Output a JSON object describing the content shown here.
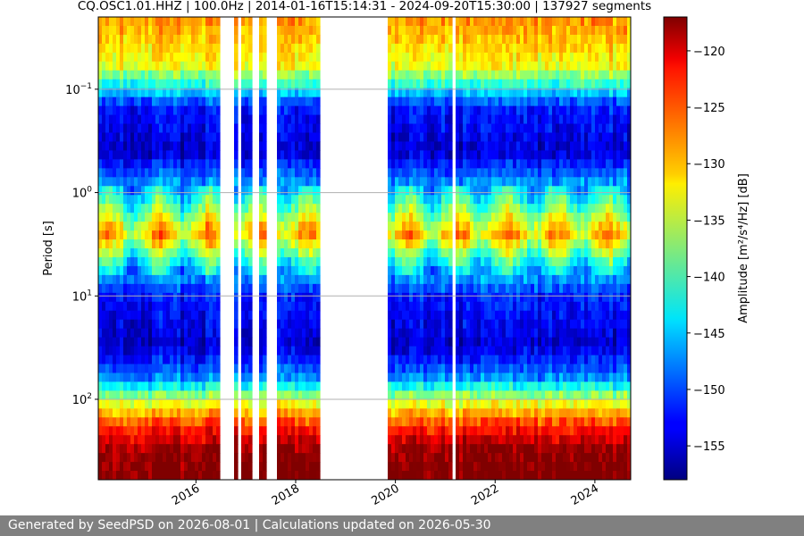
{
  "footer_text": "Generated by SeedPSD on 2026-08-01 | Calculations updated on 2026-05-30",
  "chart_data": {
    "type": "heatmap",
    "title": "CQ.OSC1.01.HHZ | 100.0Hz | 2014-01-16T15:14:31 - 2024-09-20T15:30:00 | 137927 segments",
    "xlabel": "",
    "ylabel": "Period [s]",
    "x_range": [
      "2014-01-16",
      "2024-09-20"
    ],
    "x_ticks": [
      "2016",
      "2018",
      "2020",
      "2022",
      "2024"
    ],
    "y_scale": "log",
    "y_inverted": true,
    "y_range": [
      0.02,
      600
    ],
    "y_ticks": [
      {
        "value": 0.1,
        "base": "10",
        "exp": "−1"
      },
      {
        "value": 1,
        "base": "10",
        "exp": "0"
      },
      {
        "value": 10,
        "base": "10",
        "exp": "1"
      },
      {
        "value": 100,
        "base": "10",
        "exp": "2"
      }
    ],
    "grid": "horizontal at y ticks",
    "colorbar": {
      "colormap": "jet",
      "label": "Amplitude [m²/s⁴/Hz] [dB]",
      "range": [
        -158,
        -117
      ],
      "ticks": [
        -120,
        -125,
        -130,
        -135,
        -140,
        -145,
        -150,
        -155
      ]
    },
    "data_gaps": [
      [
        "2016-07-01",
        "2016-10-01"
      ],
      [
        "2018-07-01",
        "2019-11-01"
      ],
      [
        "2021-02-15",
        "2021-03-20"
      ]
    ],
    "amplitude_profile": [
      {
        "period": 0.02,
        "db": -128
      },
      {
        "period": 0.06,
        "db": -133
      },
      {
        "period": 0.15,
        "db": -152
      },
      {
        "period": 0.4,
        "db": -155
      },
      {
        "period": 0.8,
        "db": -147
      },
      {
        "period": 2.5,
        "db": -130
      },
      {
        "period": 5,
        "db": -143
      },
      {
        "period": 10,
        "db": -152
      },
      {
        "period": 30,
        "db": -155
      },
      {
        "period": 60,
        "db": -148
      },
      {
        "period": 100,
        "db": -135
      },
      {
        "period": 180,
        "db": -124
      },
      {
        "period": 300,
        "db": -118
      },
      {
        "period": 600,
        "db": -116
      }
    ]
  }
}
